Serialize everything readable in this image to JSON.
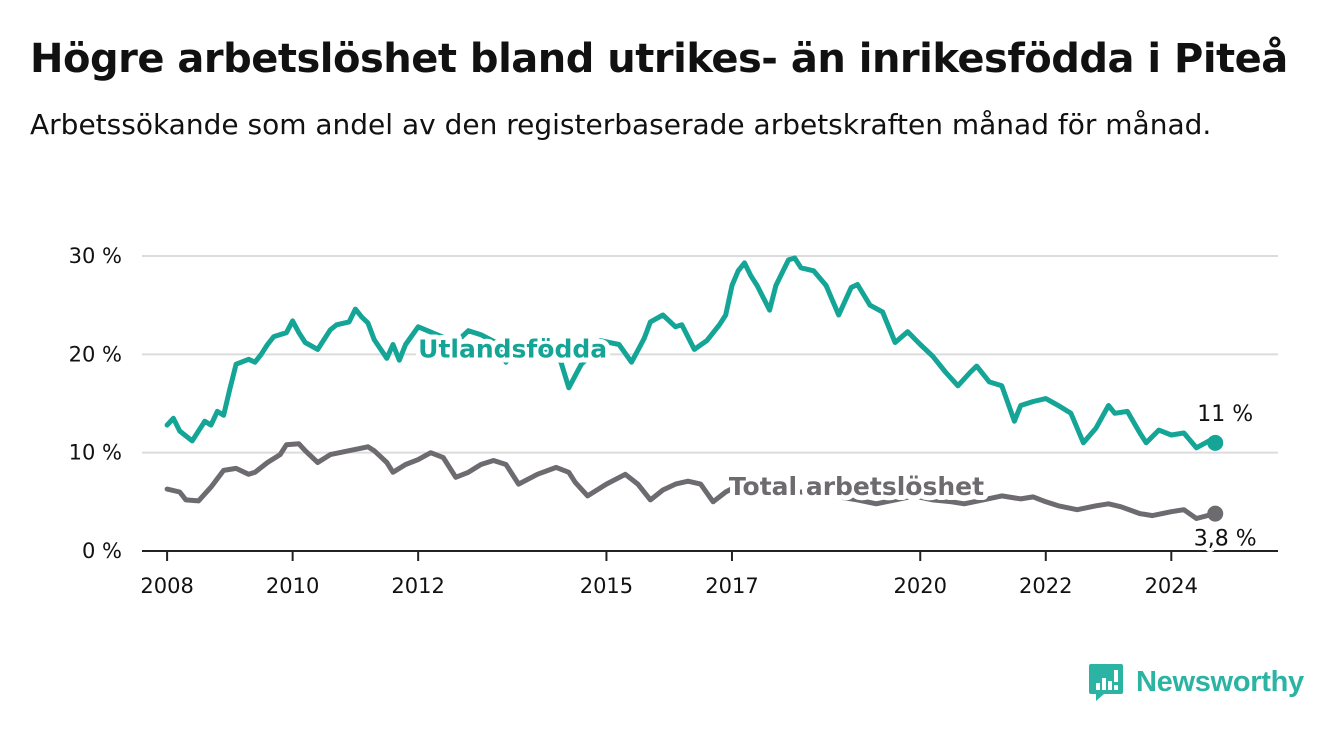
{
  "header": {
    "title": "Högre arbetslöshet bland utrikes- än inrikesfödda i Piteå",
    "subtitle": "Arbetssökande som andel av den registerbaserade arbetskraften månad för månad."
  },
  "brand": {
    "name": "Newsworthy",
    "icon": "newsworthy-chart-icon",
    "color": "#2bb3a3"
  },
  "chart_data": {
    "type": "line",
    "x_axis": {
      "ticks": [
        "2008",
        "2010",
        "2012",
        "2015",
        "2017",
        "2020",
        "2022",
        "2024"
      ],
      "tick_values": [
        2008,
        2010,
        2012,
        2015,
        2017,
        2020,
        2022,
        2024
      ],
      "range": [
        2007.6,
        2025.7
      ]
    },
    "y_axis": {
      "ticks": [
        "0 %",
        "10 %",
        "20 %",
        "30 %"
      ],
      "tick_values": [
        0,
        10,
        20,
        30
      ],
      "range": [
        0,
        30
      ]
    },
    "grid": true,
    "series": [
      {
        "name": "Utlandsfödda",
        "color": "#14a596",
        "end_label": "11 %",
        "x": [
          2008.0,
          2008.1,
          2008.2,
          2008.4,
          2008.6,
          2008.7,
          2008.8,
          2008.9,
          2009.0,
          2009.1,
          2009.3,
          2009.4,
          2009.5,
          2009.6,
          2009.7,
          2009.9,
          2010.0,
          2010.1,
          2010.2,
          2010.4,
          2010.6,
          2010.7,
          2010.9,
          2011.0,
          2011.1,
          2011.2,
          2011.3,
          2011.5,
          2011.6,
          2011.7,
          2011.8,
          2012.0,
          2012.3,
          2012.6,
          2012.8,
          2013.0,
          2013.3,
          2013.4,
          2013.6,
          2013.9,
          2014.2,
          2014.4,
          2014.6,
          2014.7,
          2014.9,
          2015.2,
          2015.4,
          2015.6,
          2015.7,
          2015.9,
          2016.1,
          2016.2,
          2016.4,
          2016.6,
          2016.8,
          2016.9,
          2017.0,
          2017.1,
          2017.2,
          2017.3,
          2017.4,
          2017.6,
          2017.7,
          2017.9,
          2018.0,
          2018.1,
          2018.3,
          2018.5,
          2018.7,
          2018.9,
          2019.0,
          2019.2,
          2019.4,
          2019.6,
          2019.8,
          2020.0,
          2020.2,
          2020.4,
          2020.6,
          2020.8,
          2020.9,
          2021.1,
          2021.3,
          2021.5,
          2021.6,
          2021.8,
          2022.0,
          2022.2,
          2022.4,
          2022.6,
          2022.8,
          2023.0,
          2023.1,
          2023.3,
          2023.5,
          2023.6,
          2023.8,
          2024.0,
          2024.2,
          2024.4,
          2024.6,
          2024.7
        ],
        "values": [
          12.8,
          13.5,
          12.2,
          11.2,
          13.2,
          12.8,
          14.2,
          13.8,
          16.5,
          19.0,
          19.5,
          19.2,
          20.0,
          21.0,
          21.8,
          22.2,
          23.4,
          22.2,
          21.2,
          20.5,
          22.5,
          23.0,
          23.3,
          24.6,
          23.8,
          23.2,
          21.5,
          19.6,
          21.0,
          19.4,
          21.0,
          22.8,
          22.0,
          21.2,
          22.4,
          22.0,
          21.0,
          19.2,
          21.2,
          20.2,
          20.8,
          16.6,
          19.0,
          19.6,
          21.4,
          21.0,
          19.2,
          21.6,
          23.3,
          24.0,
          22.8,
          23.0,
          20.5,
          21.4,
          23.0,
          24.0,
          27.0,
          28.5,
          29.3,
          28.0,
          27.0,
          24.5,
          27.0,
          29.6,
          29.8,
          28.8,
          28.5,
          27.0,
          24.0,
          26.8,
          27.1,
          25.0,
          24.3,
          21.2,
          22.3,
          21.0,
          19.8,
          18.2,
          16.8,
          18.2,
          18.8,
          17.2,
          16.8,
          13.2,
          14.8,
          15.2,
          15.5,
          14.8,
          14.0,
          11.0,
          12.5,
          14.8,
          14.0,
          14.2,
          12.0,
          11.0,
          12.3,
          11.8,
          12.0,
          10.5,
          11.2,
          11.0
        ]
      },
      {
        "name": "Total arbetslöshet",
        "color": "#6d6a70",
        "end_label": "3,8 %",
        "x": [
          2008.0,
          2008.2,
          2008.3,
          2008.5,
          2008.7,
          2008.9,
          2009.1,
          2009.3,
          2009.4,
          2009.6,
          2009.8,
          2009.9,
          2010.1,
          2010.2,
          2010.4,
          2010.6,
          2010.9,
          2011.2,
          2011.3,
          2011.5,
          2011.6,
          2011.8,
          2012.0,
          2012.2,
          2012.4,
          2012.6,
          2012.8,
          2013.0,
          2013.2,
          2013.4,
          2013.6,
          2013.9,
          2014.2,
          2014.4,
          2014.5,
          2014.7,
          2015.0,
          2015.3,
          2015.5,
          2015.7,
          2015.9,
          2016.1,
          2016.3,
          2016.5,
          2016.7,
          2016.9,
          2017.2,
          2017.4,
          2017.7,
          2017.9,
          2018.2,
          2018.5,
          2018.7,
          2019.0,
          2019.3,
          2019.6,
          2019.9,
          2020.2,
          2020.5,
          2020.7,
          2021.0,
          2021.3,
          2021.6,
          2021.8,
          2022.0,
          2022.2,
          2022.5,
          2022.8,
          2023.0,
          2023.2,
          2023.5,
          2023.7,
          2024.0,
          2024.2,
          2024.4,
          2024.7
        ],
        "values": [
          6.3,
          6.0,
          5.2,
          5.1,
          6.5,
          8.2,
          8.4,
          7.8,
          8.0,
          9.0,
          9.8,
          10.8,
          10.9,
          10.2,
          9.0,
          9.8,
          10.2,
          10.6,
          10.2,
          9.0,
          8.0,
          8.8,
          9.3,
          10.0,
          9.5,
          7.5,
          8.0,
          8.8,
          9.2,
          8.8,
          6.8,
          7.8,
          8.5,
          8.0,
          7.0,
          5.6,
          6.8,
          7.8,
          6.8,
          5.2,
          6.2,
          6.8,
          7.1,
          6.8,
          5.0,
          6.0,
          7.0,
          6.8,
          6.2,
          6.0,
          6.0,
          5.8,
          5.5,
          5.2,
          4.8,
          5.2,
          5.6,
          5.2,
          5.0,
          4.8,
          5.2,
          5.6,
          5.3,
          5.5,
          5.0,
          4.6,
          4.2,
          4.6,
          4.8,
          4.5,
          3.8,
          3.6,
          4.0,
          4.2,
          3.3,
          3.8
        ]
      }
    ]
  }
}
